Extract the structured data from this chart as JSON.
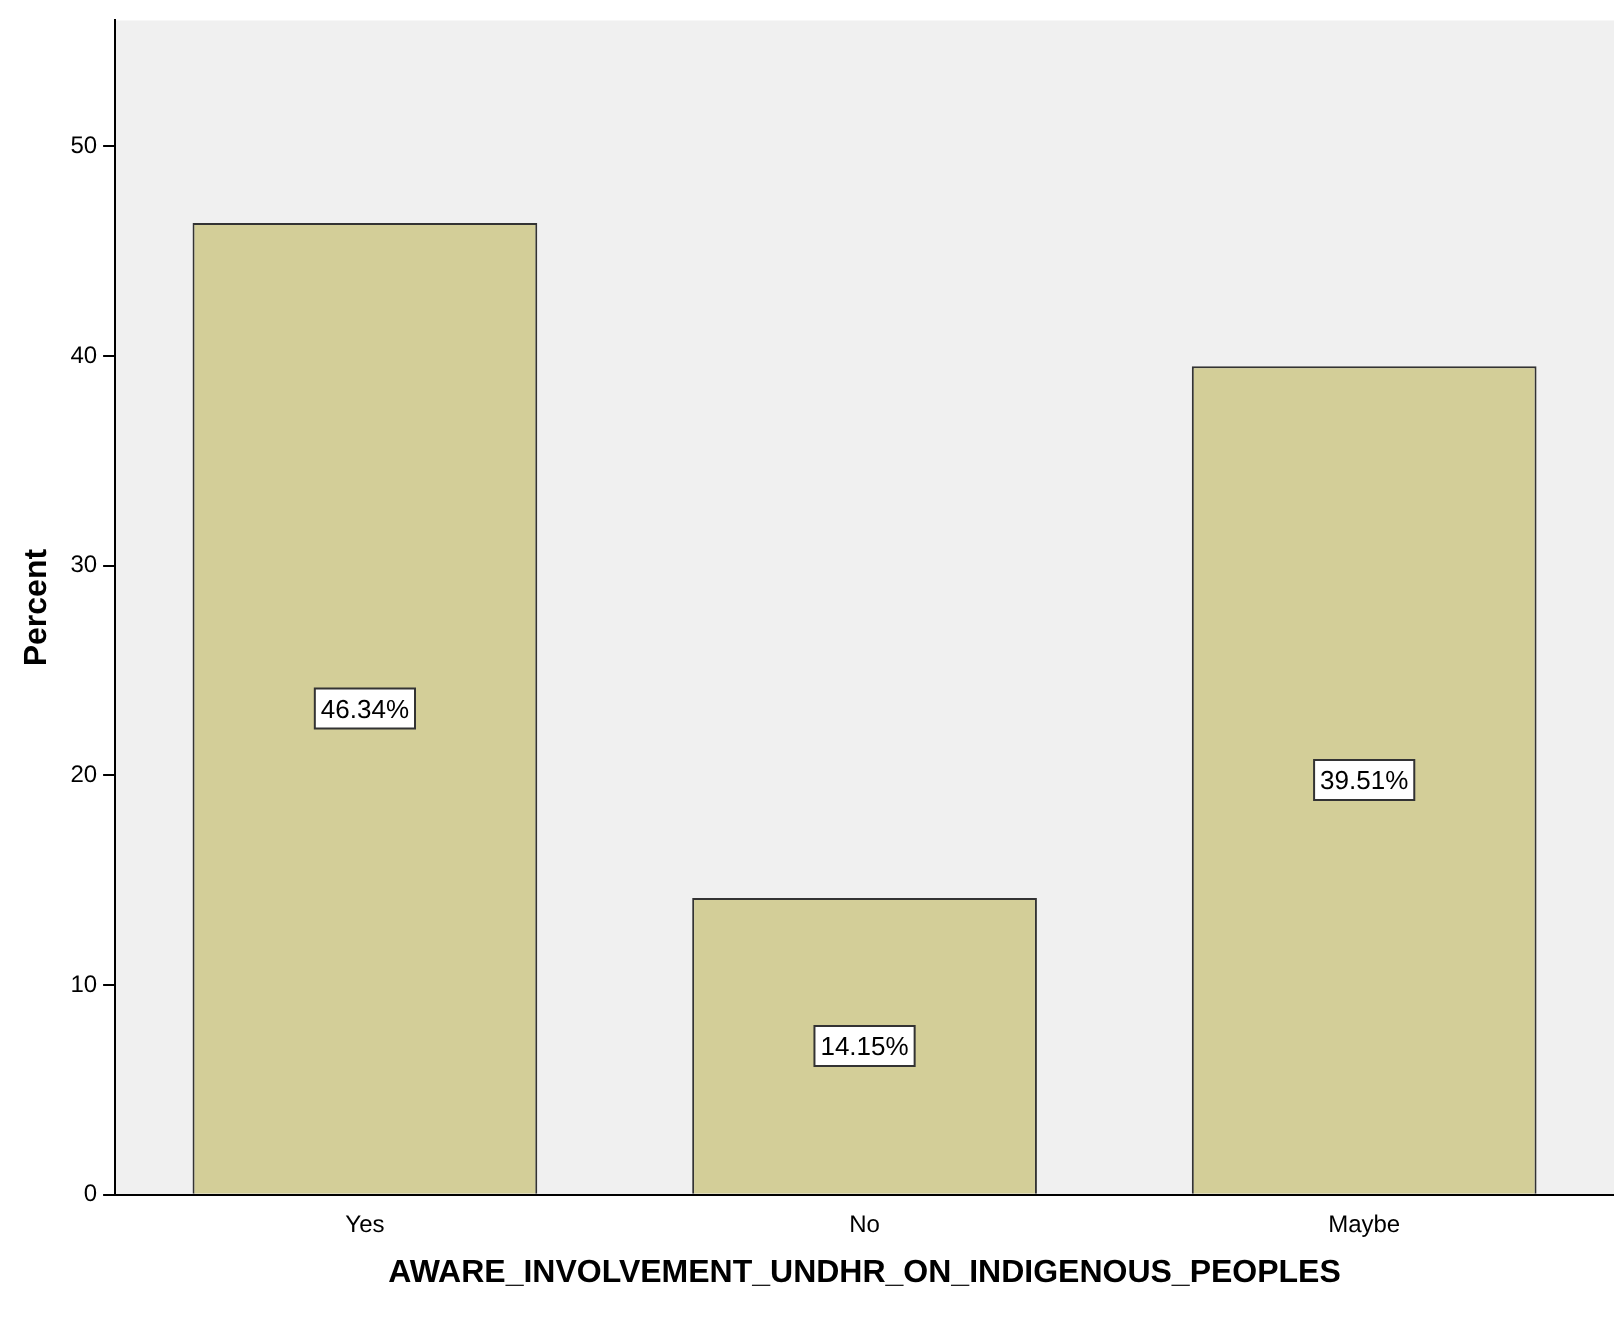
{
  "chart_data": {
    "type": "bar",
    "xlabel": "AWARE_INVOLVEMENT_UNDHR_ON_INDIGENOUS_PEOPLES",
    "ylabel": "Percent",
    "categories": [
      "Yes",
      "No",
      "Maybe"
    ],
    "values": [
      46.34,
      14.15,
      39.51
    ],
    "value_labels": [
      "46.34%",
      "14.15%",
      "39.51%"
    ],
    "color": "#d3ce98",
    "ylim": [
      0,
      56
    ],
    "yticks": [
      0,
      10,
      20,
      30,
      40,
      50
    ],
    "grid": false,
    "legend": false
  }
}
